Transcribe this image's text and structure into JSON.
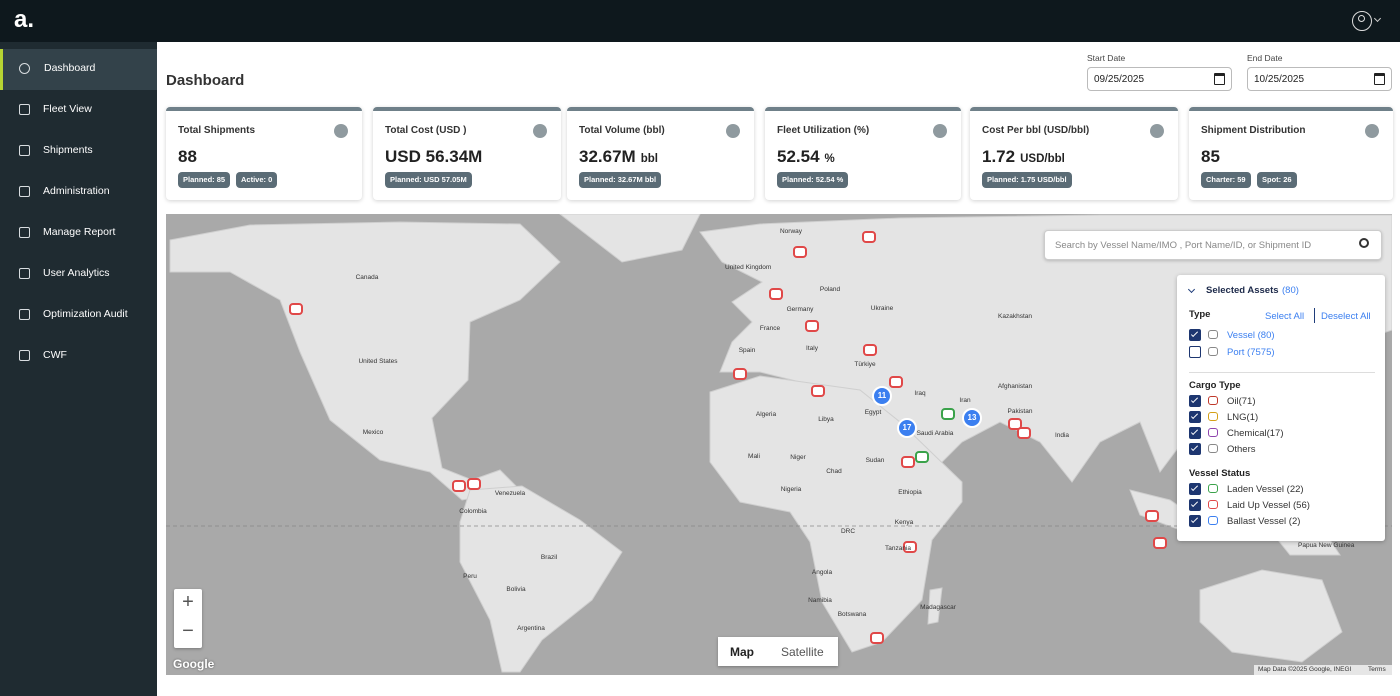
{
  "header": {
    "logo": "a."
  },
  "nav": [
    "Dashboard",
    "Fleet View",
    "Shipments",
    "Administration",
    "Manage Report",
    "User Analytics",
    "Optimization Audit",
    "CWF"
  ],
  "page": {
    "title": "Dashboard"
  },
  "dates": {
    "start_label": "Start Date",
    "start_value": "09/25/2025",
    "end_label": "End Date",
    "end_value": "10/25/2025"
  },
  "kpis": [
    {
      "title": "Total Shipments",
      "value": 88,
      "badges": [
        "Planned: 85",
        "Active: 0"
      ]
    },
    {
      "title": "Total Cost (USD )",
      "value": "USD 56.34M",
      "badges": [
        "Planned: USD 57.05M"
      ]
    },
    {
      "title": "Total Volume (bbl)",
      "value": "32.67M",
      "unit": "bbl",
      "badges": [
        "Planned: 32.67M bbl"
      ]
    },
    {
      "title": "Fleet Utilization (%)",
      "value": "52.54",
      "unit": "%",
      "badges": [
        "Planned: 52.54 %"
      ]
    },
    {
      "title": "Cost Per bbl (USD/bbl)",
      "value": "1.72",
      "unit": "USD/bbl",
      "badges": [
        "Planned: 1.75 USD/bbl"
      ]
    },
    {
      "title": "Shipment Distribution",
      "value": 85,
      "badges": [
        "Charter: 59",
        "Spot: 26"
      ]
    }
  ],
  "map": {
    "search_placeholder": "Search by Vessel Name/IMO , Port Name/ID, or Shipment ID",
    "labels": [
      "Canada",
      "United States",
      "Mexico",
      "Venezuela",
      "Colombia",
      "Brazil",
      "Peru",
      "Bolivia",
      "Argentina",
      "Norway",
      "United Kingdom",
      "Poland",
      "Germany",
      "France",
      "Ukraine",
      "Spain",
      "Italy",
      "Türkiye",
      "Kazakhstan",
      "Algeria",
      "Libya",
      "Egypt",
      "Iraq",
      "Iran",
      "Afghanistan",
      "Pakistan",
      "India",
      "Saudi Arabia",
      "Mali",
      "Niger",
      "Chad",
      "Sudan",
      "Nigeria",
      "Ethiopia",
      "Kenya",
      "DRC",
      "Tanzania",
      "Angola",
      "Namibia",
      "Botswana",
      "Madagascar",
      "Papua New Guinea"
    ],
    "clusters": [
      11,
      17,
      13
    ],
    "zoom_in": "+",
    "zoom_out": "−",
    "map_types": [
      "Map",
      "Satellite"
    ],
    "google": "Google",
    "attribution": "Map Data ©2025 Google, INEGI",
    "terms": "Terms"
  },
  "filter": {
    "title": "Selected Assets",
    "count": "(80)",
    "type_label": "Type",
    "select_all": "Select All",
    "deselect_all": "Deselect All",
    "types": [
      {
        "label": "Vessel (80)",
        "checked": true
      },
      {
        "label": "Port (7575)",
        "checked": false
      }
    ],
    "cargo_label": "Cargo Type",
    "cargo": [
      "Oil(71)",
      "LNG(1)",
      "Chemical(17)",
      "Others"
    ],
    "status_label": "Vessel Status",
    "status": [
      "Laden Vessel (22)",
      "Laid Up Vessel (56)",
      "Ballast Vessel (2)"
    ]
  }
}
